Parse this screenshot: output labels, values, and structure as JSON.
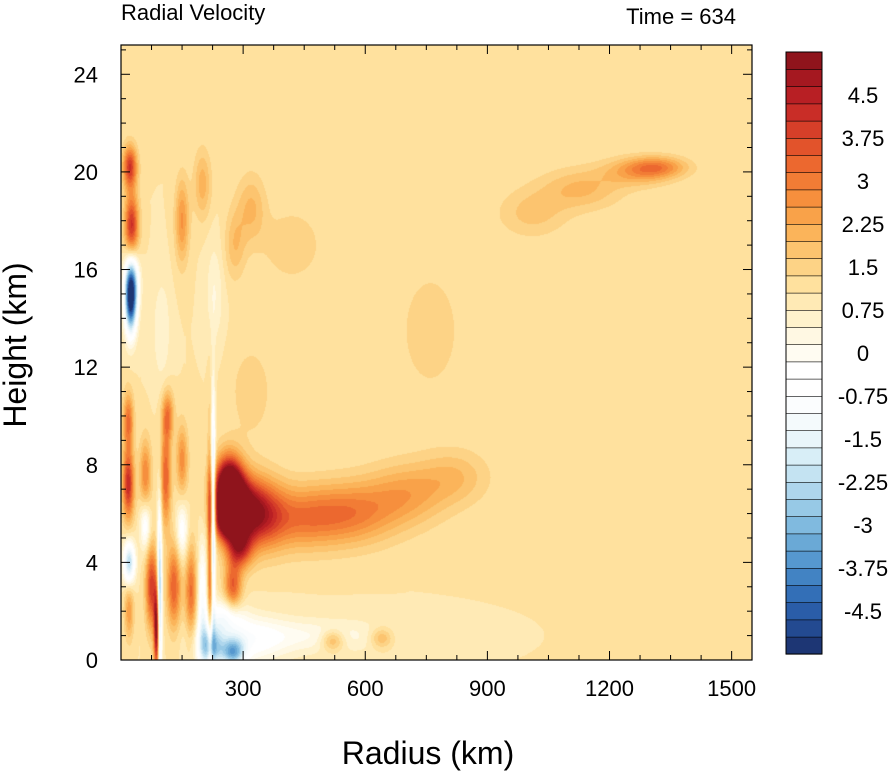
{
  "chart_data": {
    "type": "heatmap",
    "title": "Radial Velocity",
    "annotation": "Time = 634",
    "xlabel": "Radius (km)",
    "ylabel": "Height (km)",
    "xlim": [
      0,
      1550
    ],
    "ylim": [
      0,
      25.2
    ],
    "xticks": [
      300,
      600,
      900,
      1200,
      1500
    ],
    "xtick_labels": [
      "300",
      "600",
      "900",
      "1200",
      "1500"
    ],
    "yticks": [
      0,
      4,
      8,
      12,
      16,
      20,
      24
    ],
    "ytick_labels": [
      "0",
      "4",
      "8",
      "12",
      "16",
      "20",
      "24"
    ],
    "colorbar": {
      "min": -5.25,
      "max": 5.25,
      "step": 0.25,
      "label_values": [
        4.5,
        3.75,
        3,
        2.25,
        1.5,
        0.75,
        0,
        -0.75,
        -1.5,
        -2.25,
        -3,
        -3.75,
        -4.5
      ],
      "labels": [
        "4.5",
        "3.75",
        "3",
        "2.25",
        "1.5",
        "0.75",
        "0",
        "-0.75",
        "-1.5",
        "-2.25",
        "-3",
        "-3.75",
        "-4.5"
      ],
      "colors": [
        "#1d3674",
        "#234a91",
        "#2a5da8",
        "#336fb7",
        "#4283c3",
        "#5698cf",
        "#6aa9d6",
        "#80badf",
        "#97c9e6",
        "#aed6ed",
        "#c4e3f2",
        "#d8eef7",
        "#e9f5fa",
        "#f4fafc",
        "#fbfdfe",
        "#ffffff",
        "#ffffff",
        "#fffcf2",
        "#fff8e3",
        "#fff2cc",
        "#ffeab5",
        "#ffe19e",
        "#fdd386",
        "#fcc46f",
        "#fbb45a",
        "#f9a249",
        "#f68f3d",
        "#f27c35",
        "#ec682f",
        "#e2532b",
        "#d63f29",
        "#c92d27",
        "#b81f24",
        "#a51820",
        "#8f141c"
      ]
    },
    "features": [
      {
        "r": 18,
        "z": 7.2,
        "sr": 10,
        "sz": 1.0,
        "v": 2.7
      },
      {
        "r": 18,
        "z": 9.8,
        "sr": 9,
        "sz": 0.8,
        "v": 1.8
      },
      {
        "r": 20,
        "z": 4.0,
        "sr": 10,
        "sz": 0.6,
        "v": -2.8
      },
      {
        "r": 20,
        "z": 2.0,
        "sr": 8,
        "sz": 0.8,
        "v": 1.2
      },
      {
        "r": 24,
        "z": 14.6,
        "sr": 10,
        "sz": 0.9,
        "v": -4.3
      },
      {
        "r": 26,
        "z": 15.5,
        "sr": 12,
        "sz": 0.8,
        "v": -2.8
      },
      {
        "r": 26,
        "z": 17.8,
        "sr": 12,
        "sz": 0.9,
        "v": 2.6
      },
      {
        "r": 22,
        "z": 20.2,
        "sr": 12,
        "sz": 0.6,
        "v": 2.5
      },
      {
        "r": 60,
        "z": 7.6,
        "sr": 10,
        "sz": 1.0,
        "v": 1.5
      },
      {
        "r": 60,
        "z": 5.5,
        "sr": 9,
        "sz": 0.7,
        "v": -1.4
      },
      {
        "r": 75,
        "z": 3.0,
        "sr": 10,
        "sz": 1.2,
        "v": 2.4
      },
      {
        "r": 88,
        "z": 1.2,
        "sr": 5,
        "sz": 1.2,
        "v": 3.6
      },
      {
        "r": 95,
        "z": 2.5,
        "sr": 4,
        "sz": 2.5,
        "v": -3.5
      },
      {
        "r": 110,
        "z": 7.5,
        "sr": 9,
        "sz": 1.4,
        "v": 2.0
      },
      {
        "r": 115,
        "z": 10.0,
        "sr": 10,
        "sz": 0.7,
        "v": 1.6
      },
      {
        "r": 130,
        "z": 3.0,
        "sr": 12,
        "sz": 1.2,
        "v": 2.0
      },
      {
        "r": 150,
        "z": 5.3,
        "sr": 10,
        "sz": 0.8,
        "v": -1.3
      },
      {
        "r": 150,
        "z": 8.2,
        "sr": 10,
        "sz": 1.0,
        "v": 1.4
      },
      {
        "r": 172,
        "z": 2.8,
        "sr": 10,
        "sz": 1.3,
        "v": 1.8
      },
      {
        "r": 200,
        "z": 2.5,
        "sr": 8,
        "sz": 1.6,
        "v": -1.5
      },
      {
        "r": 220,
        "z": 4.0,
        "sr": 5,
        "sz": 3.5,
        "v": 2.3
      },
      {
        "r": 226,
        "z": 6.0,
        "sr": 4,
        "sz": 3.0,
        "v": -3.8
      },
      {
        "r": 220,
        "z": 0.5,
        "sr": 20,
        "sz": 0.6,
        "v": -2.8
      },
      {
        "r": 275,
        "z": 0.3,
        "sr": 20,
        "sz": 0.4,
        "v": -2.8
      },
      {
        "r": 300,
        "z": 0.8,
        "sr": 70,
        "sz": 0.7,
        "v": -1.2
      },
      {
        "r": 255,
        "z": 1.8,
        "sr": 30,
        "sz": 0.5,
        "v": -1.3
      },
      {
        "r": 265,
        "z": 7.0,
        "sr": 24,
        "sz": 0.9,
        "v": 5.0
      },
      {
        "r": 290,
        "z": 6.2,
        "sr": 35,
        "sz": 0.9,
        "v": 3.0
      },
      {
        "r": 255,
        "z": 5.6,
        "sr": 18,
        "sz": 0.5,
        "v": 2.0
      },
      {
        "r": 345,
        "z": 6.0,
        "sr": 40,
        "sz": 1.0,
        "v": 2.0
      },
      {
        "r": 290,
        "z": 4.6,
        "sr": 22,
        "sz": 0.6,
        "v": 2.4
      },
      {
        "r": 275,
        "z": 3.0,
        "sr": 15,
        "sz": 0.7,
        "v": 2.0
      },
      {
        "r": 430,
        "z": 5.8,
        "sr": 70,
        "sz": 0.9,
        "v": 1.3
      },
      {
        "r": 560,
        "z": 6.0,
        "sr": 80,
        "sz": 0.9,
        "v": 1.5
      },
      {
        "r": 700,
        "z": 6.8,
        "sr": 70,
        "sz": 0.9,
        "v": 1.0
      },
      {
        "r": 820,
        "z": 7.5,
        "sr": 60,
        "sz": 0.8,
        "v": 0.7
      },
      {
        "r": 480,
        "z": 1.0,
        "sr": 140,
        "sz": 0.5,
        "v": -0.7
      },
      {
        "r": 520,
        "z": 0.8,
        "sr": 20,
        "sz": 0.3,
        "v": 1.2
      },
      {
        "r": 640,
        "z": 0.9,
        "sr": 20,
        "sz": 0.3,
        "v": 1.0
      },
      {
        "r": 150,
        "z": 18.0,
        "sr": 12,
        "sz": 1.2,
        "v": 1.3
      },
      {
        "r": 200,
        "z": 19.5,
        "sr": 15,
        "sz": 1.0,
        "v": 0.9
      },
      {
        "r": 320,
        "z": 18.5,
        "sr": 25,
        "sz": 1.0,
        "v": 0.8
      },
      {
        "r": 280,
        "z": 17.0,
        "sr": 18,
        "sz": 1.0,
        "v": 0.7
      },
      {
        "r": 230,
        "z": 15.0,
        "sr": 15,
        "sz": 1.5,
        "v": -0.5
      },
      {
        "r": 100,
        "z": 13.5,
        "sr": 15,
        "sz": 1.5,
        "v": -0.5
      },
      {
        "r": 420,
        "z": 17.0,
        "sr": 50,
        "sz": 1.0,
        "v": 0.5
      },
      {
        "r": 1010,
        "z": 18.3,
        "sr": 60,
        "sz": 0.7,
        "v": 0.6
      },
      {
        "r": 1130,
        "z": 19.3,
        "sr": 70,
        "sz": 0.6,
        "v": 0.8
      },
      {
        "r": 1270,
        "z": 20.0,
        "sr": 60,
        "sz": 0.4,
        "v": 1.0
      },
      {
        "r": 1320,
        "z": 20.2,
        "sr": 50,
        "sz": 0.3,
        "v": 1.2
      },
      {
        "r": 760,
        "z": 13.5,
        "sr": 60,
        "sz": 2.0,
        "v": 0.4
      },
      {
        "r": 320,
        "z": 11.0,
        "sr": 40,
        "sz": 1.5,
        "v": 0.4
      }
    ]
  }
}
